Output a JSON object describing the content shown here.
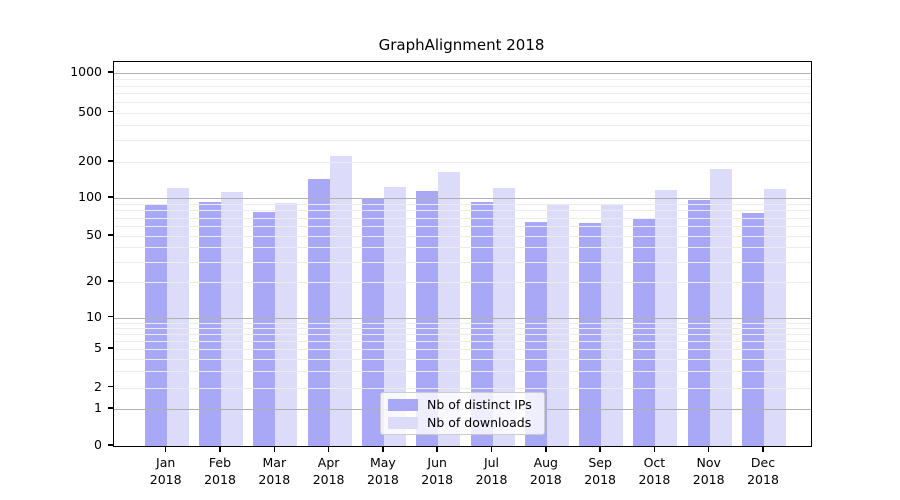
{
  "title": "GraphAlignment 2018",
  "chart_data": {
    "type": "bar",
    "title": "GraphAlignment 2018",
    "scale": "symlog",
    "grid": "both",
    "categories": [
      "Jan",
      "Feb",
      "Mar",
      "Apr",
      "May",
      "Jun",
      "Jul",
      "Aug",
      "Sep",
      "Oct",
      "Nov",
      "Dec"
    ],
    "year": "2018",
    "series": [
      {
        "name": "Nb of distinct IPs",
        "color": "#a9a8f7",
        "values": [
          90,
          93,
          78,
          143,
          100,
          115,
          93,
          65,
          63,
          70,
          96,
          76
        ]
      },
      {
        "name": "Nb of downloads",
        "color": "#dcdbf9",
        "values": [
          121,
          112,
          92,
          222,
          124,
          164,
          121,
          90,
          89,
          116,
          176,
          118
        ]
      }
    ],
    "y_ticks": [
      0,
      1,
      2,
      5,
      10,
      20,
      50,
      100,
      200,
      500,
      1000
    ],
    "y_tick_labels": [
      "0",
      "1",
      "2",
      "5",
      "10",
      "20",
      "50",
      "100",
      "200",
      "500",
      "1000"
    ],
    "y_major_gridlines": [
      1,
      10,
      100,
      1000
    ],
    "y_minor_gridlines": [
      2,
      3,
      4,
      5,
      6,
      7,
      8,
      9,
      20,
      30,
      40,
      50,
      60,
      70,
      80,
      90,
      200,
      300,
      400,
      500,
      600,
      700,
      800,
      900
    ],
    "ylim": [
      0,
      1200
    ],
    "legend_position": "lower center"
  },
  "legend": {
    "items": [
      {
        "label": "Nb of distinct IPs",
        "color": "#a9a8f7"
      },
      {
        "label": "Nb of downloads",
        "color": "#dcdbf9"
      }
    ]
  }
}
